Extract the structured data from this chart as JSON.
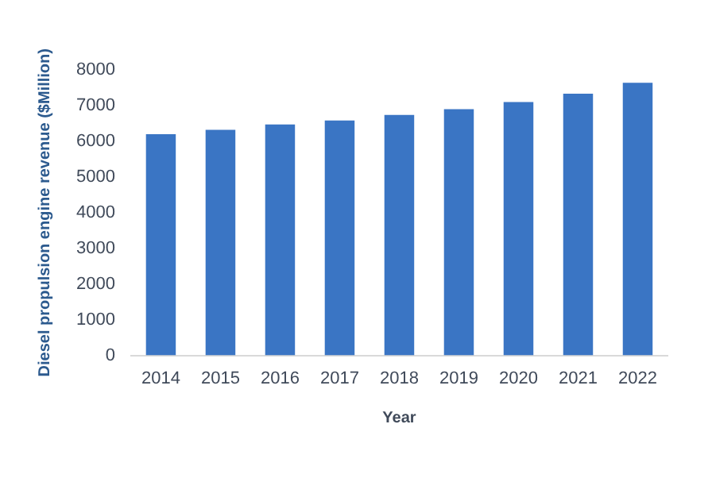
{
  "chart_data": {
    "type": "bar",
    "xlabel": "Year",
    "ylabel": "Diesel propulsion engine revenue ($Million)",
    "categories": [
      "2014",
      "2015",
      "2016",
      "2017",
      "2018",
      "2019",
      "2020",
      "2021",
      "2022"
    ],
    "values": [
      6200,
      6320,
      6470,
      6580,
      6740,
      6900,
      7100,
      7330,
      7640
    ],
    "color": "#3a75c4",
    "ylim": [
      0,
      8000
    ],
    "yticks": [
      0,
      1000,
      2000,
      3000,
      4000,
      5000,
      6000,
      7000,
      8000
    ],
    "grid": false,
    "legend": false
  }
}
